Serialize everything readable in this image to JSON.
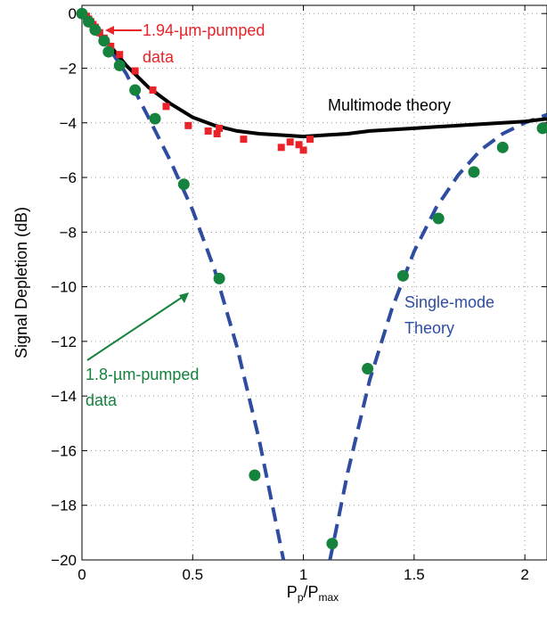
{
  "chart_data": {
    "type": "scatter",
    "xlabel": "P",
    "xlabel_sub1": "p",
    "xlabel_mid": "/P",
    "xlabel_sub2": "max",
    "ylabel": "Signal Depletion (dB)",
    "xlim": [
      0,
      2.1
    ],
    "ylim": [
      -20,
      0.3
    ],
    "xticks": [
      0,
      0.5,
      1,
      1.5,
      2
    ],
    "xtick_labels": [
      "0",
      "0.5",
      "1",
      "1.5",
      "2"
    ],
    "yticks": [
      0,
      -2,
      -4,
      -6,
      -8,
      -10,
      -12,
      -14,
      -16,
      -18,
      -20
    ],
    "ytick_labels": [
      "0",
      "−2",
      "−4",
      "−6",
      "−8",
      "−10",
      "−12",
      "−14",
      "−16",
      "−18",
      "−20"
    ],
    "grid": true,
    "colors": {
      "data_194": "#e8232a",
      "data_18": "#15823d",
      "single_mode": "#2e4da0",
      "multimode": "#000000"
    },
    "series": [
      {
        "name": "1.94-µm-pumped data",
        "kind": "square-markers",
        "points": [
          [
            0.0,
            0.0
          ],
          [
            0.02,
            -0.1
          ],
          [
            0.03,
            -0.2
          ],
          [
            0.04,
            -0.3
          ],
          [
            0.05,
            -0.4
          ],
          [
            0.06,
            -0.5
          ],
          [
            0.08,
            -0.7
          ],
          [
            0.1,
            -0.9
          ],
          [
            0.13,
            -1.2
          ],
          [
            0.17,
            -1.5
          ],
          [
            0.24,
            -2.1
          ],
          [
            0.32,
            -2.8
          ],
          [
            0.38,
            -3.4
          ],
          [
            0.48,
            -4.1
          ],
          [
            0.57,
            -4.3
          ],
          [
            0.61,
            -4.4
          ],
          [
            0.62,
            -4.2
          ],
          [
            0.73,
            -4.6
          ],
          [
            0.9,
            -4.9
          ],
          [
            0.94,
            -4.7
          ],
          [
            0.98,
            -4.8
          ],
          [
            1.0,
            -5.0
          ],
          [
            1.03,
            -4.6
          ]
        ]
      },
      {
        "name": "1.8-µm-pumped data",
        "kind": "circle-markers",
        "points": [
          [
            0.0,
            0.0
          ],
          [
            0.03,
            -0.3
          ],
          [
            0.06,
            -0.6
          ],
          [
            0.1,
            -1.0
          ],
          [
            0.12,
            -1.4
          ],
          [
            0.17,
            -1.9
          ],
          [
            0.24,
            -2.8
          ],
          [
            0.33,
            -3.85
          ],
          [
            0.46,
            -6.25
          ],
          [
            0.62,
            -9.7
          ],
          [
            0.78,
            -16.9
          ],
          [
            1.13,
            -19.4
          ],
          [
            1.29,
            -13.0
          ],
          [
            1.45,
            -9.6
          ],
          [
            1.61,
            -7.5
          ],
          [
            1.77,
            -5.8
          ],
          [
            1.9,
            -4.9
          ],
          [
            2.08,
            -4.2
          ]
        ]
      },
      {
        "name": "Single-mode Theory",
        "kind": "dashed-line",
        "segments": [
          [
            [
              0.0,
              0.0
            ],
            [
              0.1,
              -1.0
            ],
            [
              0.2,
              -2.2
            ],
            [
              0.3,
              -3.8
            ],
            [
              0.4,
              -5.4
            ],
            [
              0.5,
              -7.2
            ],
            [
              0.6,
              -9.4
            ],
            [
              0.7,
              -12.2
            ],
            [
              0.8,
              -15.6
            ],
            [
              0.86,
              -18.0
            ],
            [
              0.91,
              -20.0
            ]
          ],
          [
            [
              1.12,
              -20.0
            ],
            [
              1.2,
              -16.8
            ],
            [
              1.3,
              -13.4
            ],
            [
              1.4,
              -10.8
            ],
            [
              1.5,
              -8.7
            ],
            [
              1.6,
              -7.1
            ],
            [
              1.7,
              -5.9
            ],
            [
              1.8,
              -5.0
            ],
            [
              1.9,
              -4.4
            ],
            [
              2.0,
              -4.0
            ],
            [
              2.1,
              -3.7
            ]
          ]
        ]
      },
      {
        "name": "Multimode theory",
        "kind": "solid-line",
        "points": [
          [
            0.0,
            0.0
          ],
          [
            0.05,
            -0.4
          ],
          [
            0.1,
            -0.9
          ],
          [
            0.15,
            -1.4
          ],
          [
            0.2,
            -1.9
          ],
          [
            0.3,
            -2.7
          ],
          [
            0.4,
            -3.3
          ],
          [
            0.5,
            -3.8
          ],
          [
            0.6,
            -4.1
          ],
          [
            0.7,
            -4.3
          ],
          [
            0.8,
            -4.4
          ],
          [
            0.9,
            -4.45
          ],
          [
            1.0,
            -4.5
          ],
          [
            1.1,
            -4.45
          ],
          [
            1.2,
            -4.4
          ],
          [
            1.3,
            -4.3
          ],
          [
            1.4,
            -4.25
          ],
          [
            1.5,
            -4.2
          ],
          [
            1.6,
            -4.15
          ],
          [
            1.7,
            -4.1
          ],
          [
            1.8,
            -4.05
          ],
          [
            1.9,
            -4.0
          ],
          [
            2.0,
            -3.95
          ],
          [
            2.1,
            -3.85
          ]
        ]
      }
    ],
    "annotations": {
      "label_194_line1": "1.94-µm-pumped",
      "label_194_line2": "data",
      "label_18_line1": "1.8-µm-pumped",
      "label_18_line2": "data",
      "label_single_line1": "Single-mode",
      "label_single_line2": "Theory",
      "label_multi": "Multimode theory"
    }
  }
}
